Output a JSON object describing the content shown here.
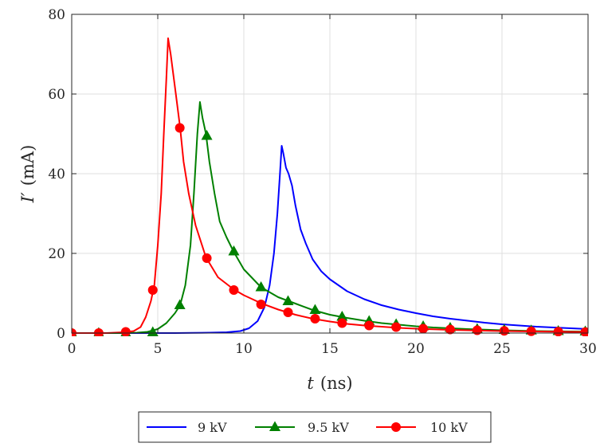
{
  "chart_data": {
    "type": "line",
    "title": "",
    "xlabel": "t (ns)",
    "xlabel_var": "t",
    "xlabel_unit": "(ns)",
    "ylabel": "I′ (mA)",
    "ylabel_var": "I′",
    "ylabel_unit": "(mA)",
    "xlim": [
      0,
      30
    ],
    "ylim": [
      0,
      80
    ],
    "xticks": [
      0,
      5,
      10,
      15,
      20,
      25,
      30
    ],
    "yticks": [
      0,
      20,
      40,
      60,
      80
    ],
    "grid": true,
    "legend_position": "bottom-outside",
    "series": [
      {
        "name": "9 kV",
        "color": "#0000ff",
        "marker": "none",
        "x": [
          0,
          2,
          4,
          6,
          7,
          8,
          9,
          9.8,
          10.3,
          10.8,
          11.2,
          11.5,
          11.75,
          11.95,
          12.1,
          12.2,
          12.3,
          12.45,
          12.6,
          12.8,
          13.0,
          13.3,
          13.6,
          14.0,
          14.5,
          15.0,
          16.0,
          17.0,
          18.0,
          19.0,
          20.0,
          21.0,
          22.0,
          23.0,
          24.0,
          25.0,
          26.0,
          27.0,
          28.0,
          29.0,
          30.0
        ],
        "values": [
          0,
          0,
          0,
          0,
          0.05,
          0.1,
          0.2,
          0.5,
          1.2,
          3,
          6.5,
          12,
          20,
          30,
          40,
          47,
          45,
          41.5,
          40,
          37,
          32,
          26,
          22.5,
          18.5,
          15.5,
          13.5,
          10.5,
          8.5,
          7,
          5.9,
          5,
          4.2,
          3.6,
          3.1,
          2.6,
          2.2,
          1.9,
          1.6,
          1.4,
          1.2,
          1.0
        ]
      },
      {
        "name": "9.5 kV",
        "color": "#008000",
        "marker": "triangle",
        "x": [
          0,
          2,
          3,
          3.8,
          4.4,
          5.0,
          5.5,
          6.0,
          6.3,
          6.6,
          6.9,
          7.1,
          7.3,
          7.45,
          7.6,
          7.8,
          8.0,
          8.3,
          8.6,
          9.0,
          9.4,
          10.0,
          11.0,
          12.0,
          13.0,
          14.0,
          15.0,
          16.0,
          17.0,
          18.0,
          19.0,
          20.0,
          21.0,
          22.0,
          23.0,
          24.0,
          25.0,
          26.0,
          27.0,
          28.0,
          29.0,
          30.0
        ],
        "values": [
          0,
          0,
          0,
          0.1,
          0.3,
          1,
          2.5,
          5,
          7,
          12,
          22,
          35,
          50,
          58,
          54,
          50,
          43,
          35,
          28,
          24,
          20.5,
          16,
          11.5,
          9,
          7.4,
          5.8,
          4.6,
          3.8,
          3.1,
          2.5,
          2.1,
          1.7,
          1.4,
          1.2,
          1.0,
          0.85,
          0.7,
          0.6,
          0.5,
          0.45,
          0.4,
          0.35
        ],
        "marker_x": [
          0,
          1.57,
          3.14,
          4.71,
          6.28,
          7.85,
          9.42,
          11.0,
          12.57,
          14.14,
          15.71,
          17.28,
          18.85,
          20.42,
          21.99,
          23.56,
          25.13,
          26.7,
          28.27,
          29.84
        ],
        "marker_values": [
          0,
          0,
          0,
          0.2,
          7,
          49.5,
          20.5,
          11.5,
          8,
          5.8,
          4.1,
          3.0,
          2.2,
          1.7,
          1.3,
          1.0,
          0.8,
          0.65,
          0.5,
          0.4
        ]
      },
      {
        "name": "10 kV",
        "color": "#ff0000",
        "marker": "circle",
        "x": [
          0,
          2,
          3,
          3.6,
          4.0,
          4.3,
          4.6,
          4.8,
          5.0,
          5.2,
          5.35,
          5.5,
          5.6,
          5.75,
          5.9,
          6.05,
          6.3,
          6.5,
          6.8,
          7.2,
          7.8,
          8.5,
          9.4,
          10.0,
          11.0,
          12.0,
          13.0,
          14.0,
          15.0,
          16.0,
          17.0,
          18.0,
          19.0,
          20.0,
          21.0,
          22.0,
          23.0,
          24.0,
          25.0,
          26.0,
          27.0,
          28.0,
          29.0,
          30.0
        ],
        "values": [
          0,
          0,
          0.2,
          0.5,
          1.5,
          4,
          8,
          12,
          22,
          35,
          50,
          64,
          74,
          70,
          65,
          60,
          51.5,
          43,
          35,
          27,
          19,
          14,
          11,
          9.5,
          7.5,
          5.9,
          4.6,
          3.6,
          2.9,
          2.3,
          1.9,
          1.6,
          1.3,
          1.1,
          0.95,
          0.8,
          0.7,
          0.6,
          0.5,
          0.45,
          0.4,
          0.35,
          0.3,
          0.25
        ],
        "marker_x": [
          0,
          1.57,
          3.14,
          4.71,
          6.28,
          7.85,
          9.42,
          11.0,
          12.57,
          14.14,
          15.71,
          17.28,
          18.85,
          20.42,
          21.99,
          23.56,
          25.13,
          26.7,
          28.27,
          29.84
        ],
        "marker_values": [
          0,
          0,
          0.3,
          10.8,
          51.5,
          18.8,
          10.8,
          7.2,
          5.2,
          3.6,
          2.5,
          1.9,
          1.5,
          1.1,
          0.9,
          0.7,
          0.55,
          0.45,
          0.35,
          0.25
        ]
      }
    ]
  }
}
